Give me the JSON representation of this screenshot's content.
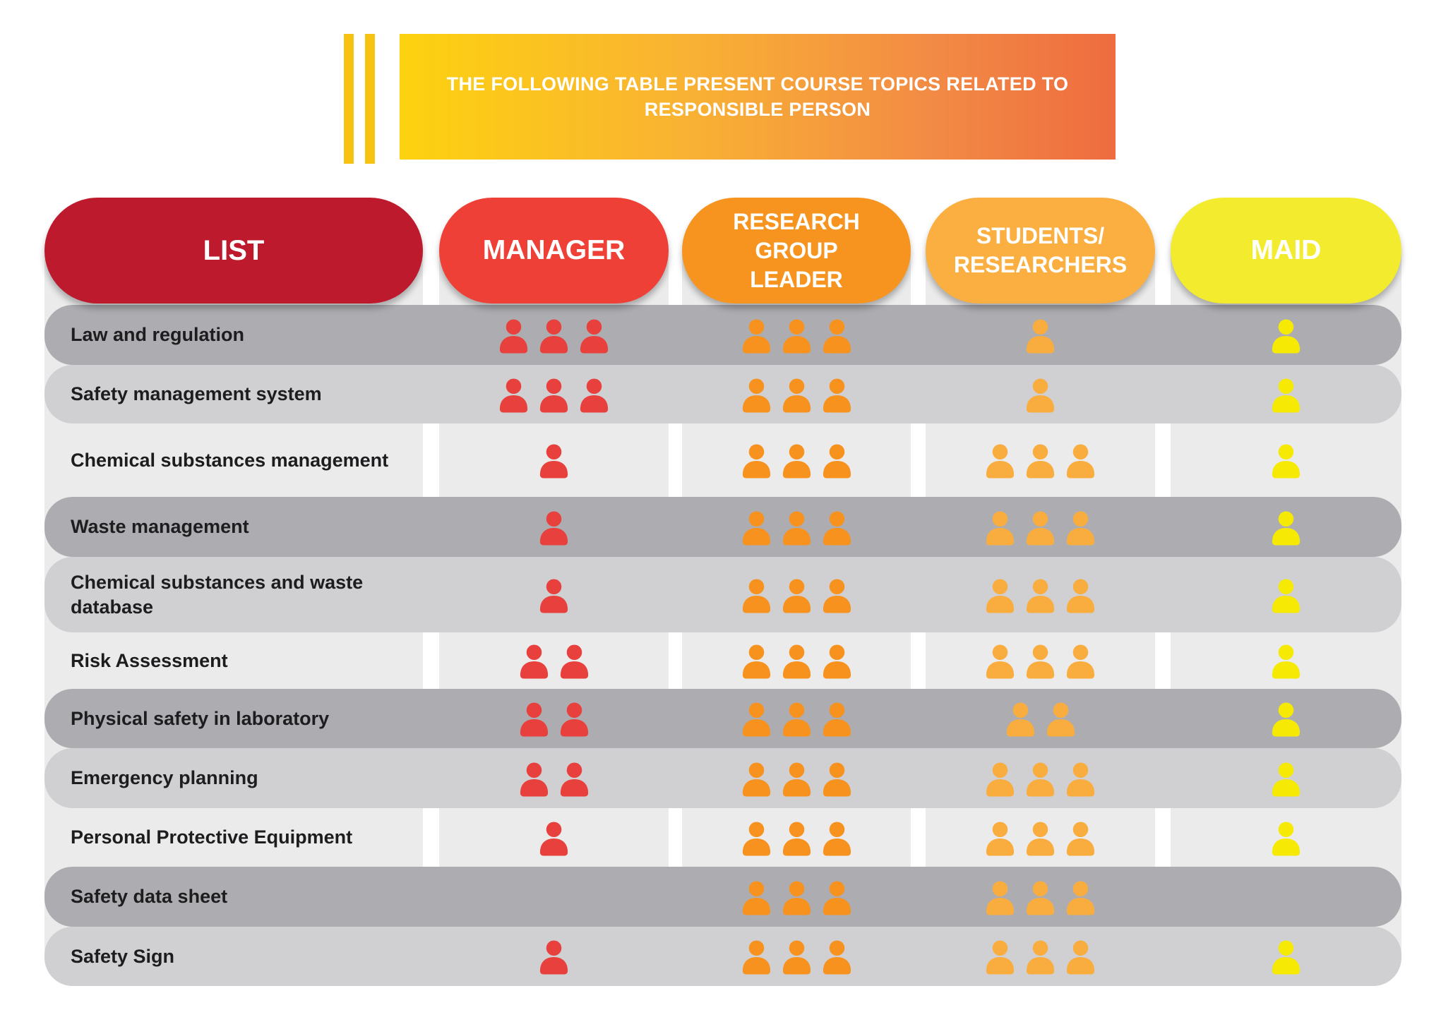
{
  "banner": {
    "title": "THE FOLLOWING TABLE PRESENT COURSE TOPICS RELATED TO\nRESPONSIBLE PERSON"
  },
  "colors": {
    "list": "#bd1a2d",
    "manager": "#ee4036",
    "leader": "#f7941f",
    "students": "#faaf40",
    "maid": "#f3ec2e",
    "manager_icon": "#e8403c",
    "leader_icon": "#f7921e",
    "students_icon": "#f9ad3f",
    "maid_icon": "#f6ea05"
  },
  "headers": {
    "list": "LIST",
    "manager": "MANAGER",
    "leader": "RESEARCH\nGROUP\nLEADER",
    "students": "STUDENTS/\nRESEARCHERS",
    "maid": "MAID"
  },
  "icon": "person-icon",
  "rows": [
    {
      "topic": "Law and regulation",
      "manager": 3,
      "leader": 3,
      "students": 1,
      "maid": 1
    },
    {
      "topic": "Safety management system",
      "manager": 3,
      "leader": 3,
      "students": 1,
      "maid": 1
    },
    {
      "topic": "Chemical substances management",
      "manager": 1,
      "leader": 3,
      "students": 3,
      "maid": 1
    },
    {
      "topic": "Waste management",
      "manager": 1,
      "leader": 3,
      "students": 3,
      "maid": 1
    },
    {
      "topic": "Chemical substances and waste database",
      "manager": 1,
      "leader": 3,
      "students": 3,
      "maid": 1
    },
    {
      "topic": "Risk Assessment",
      "manager": 2,
      "leader": 3,
      "students": 3,
      "maid": 1
    },
    {
      "topic": "Physical safety in laboratory",
      "manager": 2,
      "leader": 3,
      "students": 2,
      "maid": 1
    },
    {
      "topic": "Emergency planning",
      "manager": 2,
      "leader": 3,
      "students": 3,
      "maid": 1
    },
    {
      "topic": "Personal Protective Equipment",
      "manager": 1,
      "leader": 3,
      "students": 3,
      "maid": 1
    },
    {
      "topic": "Safety data sheet",
      "manager": 0,
      "leader": 3,
      "students": 3,
      "maid": 0
    },
    {
      "topic": "Safety Sign",
      "manager": 1,
      "leader": 3,
      "students": 3,
      "maid": 1
    }
  ]
}
